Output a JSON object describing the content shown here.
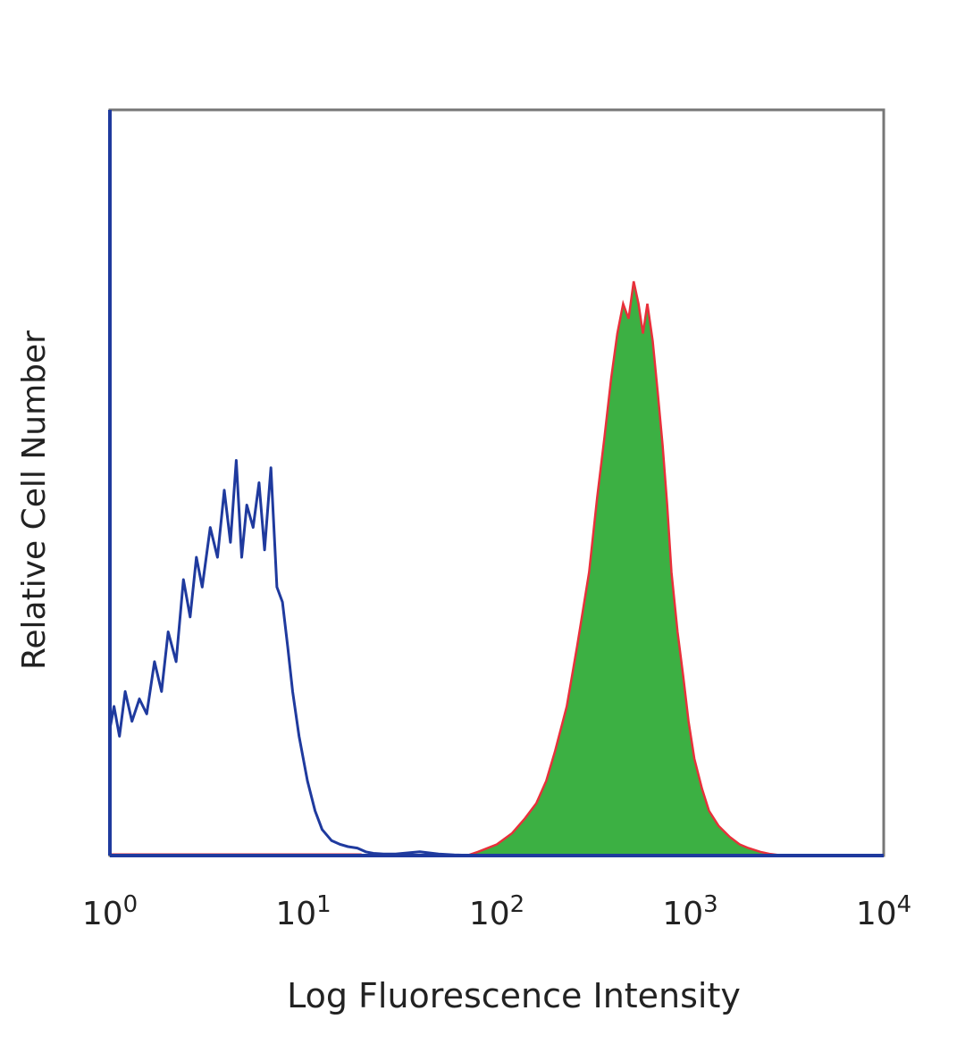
{
  "chart_data": {
    "type": "area",
    "title": "",
    "xlabel": "Log Fluorescence Intensity",
    "ylabel": "Relative Cell Number",
    "x_scale": "log",
    "xlim": [
      1,
      10000
    ],
    "ylim": [
      0,
      100
    ],
    "grid": false,
    "legend": "none",
    "x_ticks": [
      {
        "value": 1,
        "base": "10",
        "exp": "0"
      },
      {
        "value": 10,
        "base": "10",
        "exp": "1"
      },
      {
        "value": 100,
        "base": "10",
        "exp": "2"
      },
      {
        "value": 1000,
        "base": "10",
        "exp": "3"
      },
      {
        "value": 10000,
        "base": "10",
        "exp": "4"
      }
    ],
    "series": [
      {
        "style": "line",
        "color": "#1f3a9e",
        "x": [
          1.0,
          1.05,
          1.12,
          1.2,
          1.3,
          1.42,
          1.55,
          1.7,
          1.85,
          2.0,
          2.2,
          2.4,
          2.6,
          2.8,
          3.0,
          3.3,
          3.6,
          3.9,
          4.2,
          4.5,
          4.8,
          5.1,
          5.5,
          5.9,
          6.3,
          6.8,
          7.3,
          7.8,
          8.3,
          8.8,
          9.5,
          10.5,
          11.5,
          12.5,
          14,
          15.5,
          17,
          19,
          21,
          23,
          26,
          30,
          40,
          50,
          60,
          80,
          100
        ],
        "y": [
          17,
          20,
          16,
          22,
          18,
          21,
          19,
          26,
          22,
          30,
          26,
          37,
          32,
          40,
          36,
          44,
          40,
          49,
          42,
          53,
          40,
          47,
          44,
          50,
          41,
          52,
          36,
          34,
          28,
          22,
          16,
          10,
          6,
          3.5,
          2,
          1.5,
          1.2,
          1,
          0.5,
          0.3,
          0.2,
          0.2,
          0.5,
          0.2,
          0.1,
          0,
          0
        ]
      },
      {
        "style": "filled",
        "color": "#3cb043",
        "outline": "#e8303a",
        "x": [
          70,
          80,
          100,
          120,
          140,
          160,
          180,
          200,
          230,
          260,
          300,
          330,
          360,
          390,
          420,
          450,
          480,
          510,
          540,
          570,
          600,
          640,
          680,
          720,
          760,
          800,
          860,
          920,
          980,
          1050,
          1150,
          1250,
          1400,
          1600,
          1800,
          2000,
          2300,
          2600,
          3000
        ],
        "y": [
          0,
          0.5,
          1.5,
          3,
          5,
          7,
          10,
          14,
          20,
          28,
          38,
          48,
          56,
          64,
          70,
          74,
          72,
          77,
          74,
          70,
          74,
          69,
          62,
          55,
          47,
          38,
          30,
          24,
          18,
          13,
          9,
          6,
          4,
          2.5,
          1.5,
          1,
          0.5,
          0.2,
          0
        ]
      }
    ]
  }
}
